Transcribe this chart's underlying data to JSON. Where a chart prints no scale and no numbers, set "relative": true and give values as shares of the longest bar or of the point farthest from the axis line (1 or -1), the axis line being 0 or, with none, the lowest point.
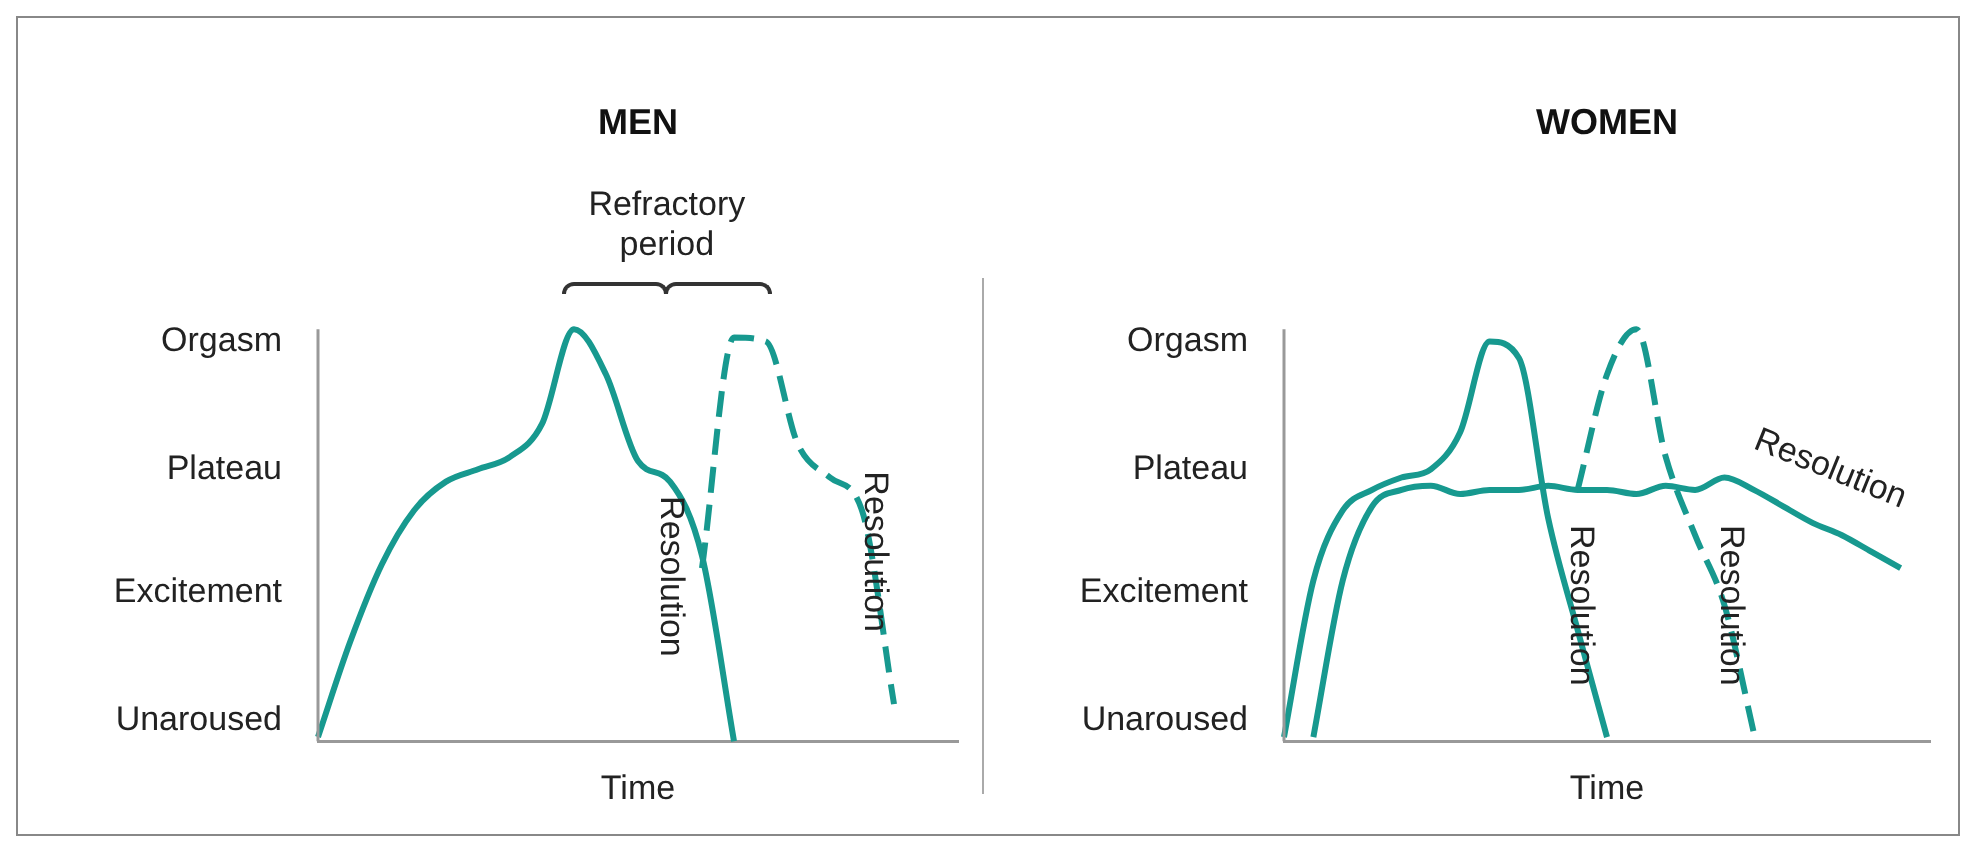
{
  "chart_data": [
    {
      "type": "line",
      "title": "MEN",
      "xlabel": "Time",
      "relative": true,
      "categories": [
        null,
        null,
        null,
        null,
        null,
        null,
        null,
        null,
        null,
        null,
        null,
        null,
        null,
        null,
        null,
        null,
        null,
        null,
        null,
        null,
        null
      ],
      "series": [
        {
          "color": "#17998f",
          "line_style": "solid",
          "values": [
            0.01,
            0.24,
            0.43,
            0.56,
            0.63,
            0.66,
            0.69,
            0.77,
            1.0,
            0.89,
            0.68,
            0.63,
            0.45,
            0,
            null,
            null,
            null,
            null,
            null,
            null,
            null
          ]
        },
        {
          "color": "#17998f",
          "line_style": "dashed",
          "values": [
            null,
            null,
            null,
            null,
            null,
            null,
            null,
            null,
            null,
            null,
            null,
            null,
            0.42,
            0.98,
            0.97,
            0.72,
            0.64,
            0.56,
            0.09,
            null,
            null
          ]
        }
      ],
      "tick_labels": false,
      "grid": false,
      "legend": false,
      "marker": "none",
      "annotations": [
        "Refractory period",
        "Resolution",
        "Resolution",
        "Unaroused",
        "Excitement",
        "Plateau",
        "Orgasm"
      ]
    },
    {
      "type": "line",
      "title": "WOMEN",
      "xlabel": "Time",
      "relative": true,
      "categories": [
        null,
        null,
        null,
        null,
        null,
        null,
        null,
        null,
        null,
        null,
        null,
        null,
        null,
        null,
        null,
        null,
        null,
        null,
        null,
        null,
        null,
        null,
        null
      ],
      "series": [
        {
          "color": "#17998f",
          "line_style": "solid",
          "values": [
            0.01,
            0.39,
            0.56,
            0.61,
            0.64,
            0.66,
            0.75,
            0.97,
            0.93,
            0.54,
            0.27,
            0.01,
            null,
            null,
            null,
            null,
            null,
            null,
            null,
            null,
            null,
            null,
            null
          ]
        },
        {
          "color": "#17998f",
          "line_style": "solid",
          "values": [
            null,
            0.01,
            0.39,
            0.57,
            0.61,
            0.62,
            0.6,
            0.61,
            0.61,
            0.62,
            0.61,
            0.61,
            0.6,
            0.62,
            0.61,
            0.64,
            0.61,
            0.57,
            0.53,
            0.5,
            0.46,
            0.42,
            null
          ]
        },
        {
          "color": "#17998f",
          "line_style": "dashed",
          "values": [
            null,
            null,
            null,
            null,
            null,
            null,
            null,
            null,
            null,
            null,
            0.61,
            0.89,
            1.0,
            0.69,
            0.5,
            0.33,
            0.02,
            null,
            null,
            null,
            null,
            null,
            null
          ]
        }
      ],
      "tick_labels": false,
      "grid": false,
      "legend": false,
      "marker": "none",
      "annotations": [
        "Resolution",
        "Resolution",
        "Resolution",
        "Unaroused",
        "Excitement",
        "Plateau",
        "Orgasm"
      ]
    }
  ]
}
